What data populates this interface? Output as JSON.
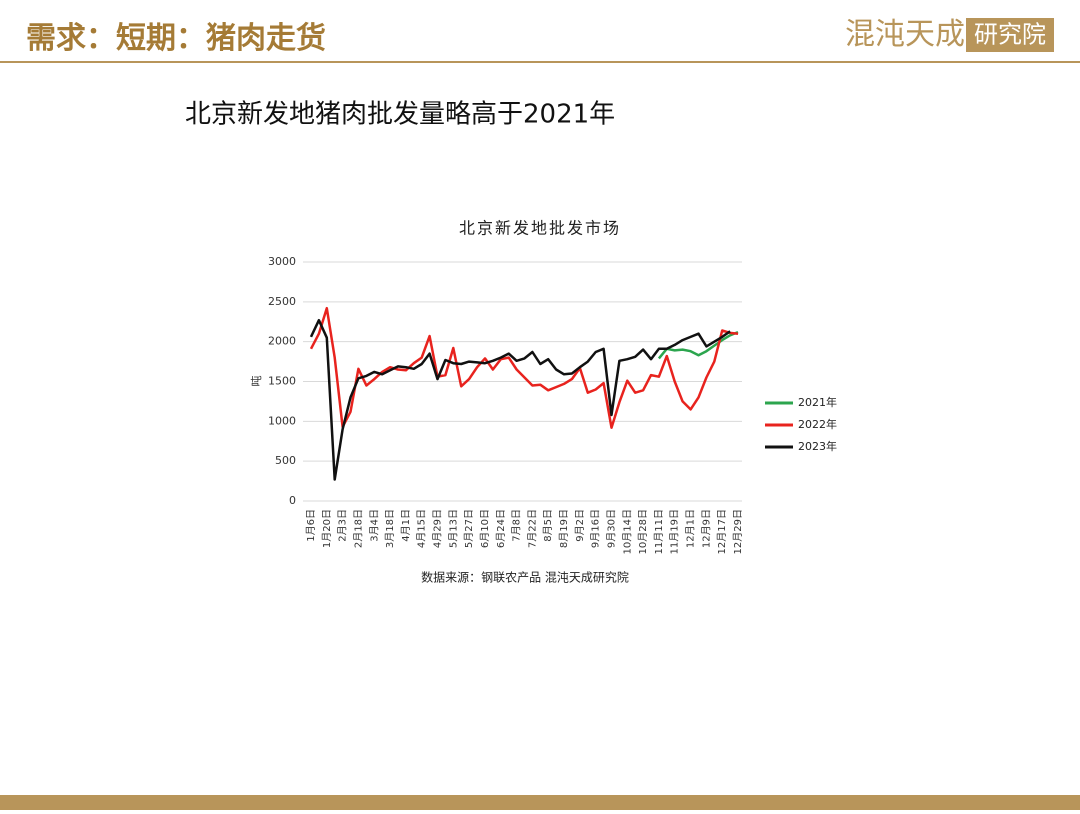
{
  "header": {
    "title": "需求：短期：猪肉走货",
    "logo_main": "混沌天成",
    "logo_box": "研究院"
  },
  "headline": "北京新发地猪肉批发量略高于2021年",
  "chart_data": {
    "type": "line",
    "title": "北京新发地批发市场",
    "y_label": "吨",
    "source": "数据来源：钢联农产品 混沌天成研究院",
    "categories": [
      "1月6日",
      null,
      "1月20日",
      null,
      "2月3日",
      null,
      "2月18日",
      null,
      "3月4日",
      null,
      "3月18日",
      null,
      "4月1日",
      null,
      "4月15日",
      null,
      "4月29日",
      null,
      "5月13日",
      null,
      "5月27日",
      null,
      "6月10日",
      null,
      "6月24日",
      null,
      "7月8日",
      null,
      "7月22日",
      null,
      "8月5日",
      null,
      "8月19日",
      null,
      "9月2日",
      null,
      "9月16日",
      null,
      "9月30日",
      null,
      "10月14日",
      null,
      "10月28日",
      null,
      "11月11日",
      null,
      "11月19日",
      null,
      "12月1日",
      null,
      "12月9日",
      null,
      "12月17日",
      null,
      "12月29日"
    ],
    "ylim": [
      0,
      3000
    ],
    "yticks": [
      0,
      500,
      1000,
      1500,
      2000,
      2500,
      3000
    ],
    "grid": true,
    "legend": "right",
    "series": [
      {
        "name": "2021年",
        "color": "#2ca54e",
        "values": [
          null,
          null,
          null,
          null,
          null,
          null,
          null,
          null,
          null,
          null,
          null,
          null,
          null,
          null,
          null,
          null,
          null,
          null,
          null,
          null,
          null,
          null,
          null,
          null,
          null,
          null,
          null,
          null,
          null,
          null,
          null,
          null,
          null,
          null,
          null,
          null,
          null,
          null,
          null,
          null,
          null,
          null,
          null,
          null,
          1790,
          1910,
          1890,
          1900,
          1880,
          1830,
          1880,
          1950,
          2020,
          2080,
          2120
        ]
      },
      {
        "name": "2022年",
        "color": "#e8231e",
        "values": [
          1910,
          2100,
          2420,
          1800,
          930,
          1120,
          1660,
          1450,
          1530,
          1620,
          1680,
          1650,
          1640,
          1730,
          1800,
          2070,
          1560,
          1580,
          1920,
          1440,
          1530,
          1680,
          1790,
          1650,
          1780,
          1800,
          1650,
          1550,
          1450,
          1460,
          1390,
          1430,
          1470,
          1530,
          1670,
          1360,
          1400,
          1480,
          920,
          1240,
          1510,
          1360,
          1390,
          1580,
          1560,
          1820,
          1500,
          1250,
          1150,
          1300,
          1550,
          1750,
          2140,
          2110,
          2100
        ]
      },
      {
        "name": "2023年",
        "color": "#111111",
        "values": [
          2060,
          2270,
          2050,
          270,
          900,
          1300,
          1540,
          1570,
          1620,
          1590,
          1640,
          1690,
          1680,
          1660,
          1720,
          1850,
          1530,
          1770,
          1730,
          1720,
          1750,
          1740,
          1730,
          1760,
          1800,
          1850,
          1760,
          1790,
          1870,
          1720,
          1780,
          1650,
          1590,
          1600,
          1680,
          1750,
          1870,
          1910,
          1080,
          1760,
          1780,
          1810,
          1900,
          1780,
          1910,
          1910,
          1960,
          2020,
          2060,
          2100,
          1940,
          2000,
          2060,
          2130,
          null
        ]
      }
    ]
  }
}
